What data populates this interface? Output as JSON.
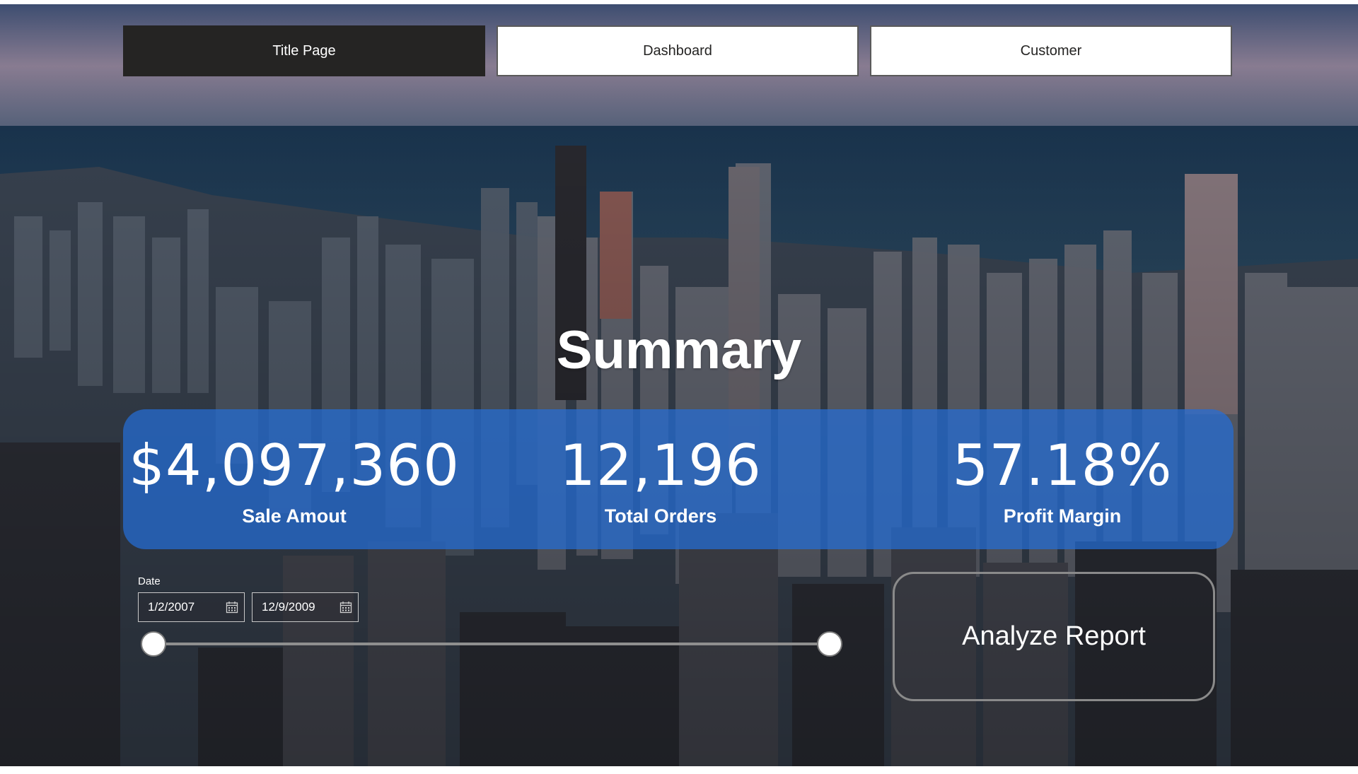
{
  "nav": {
    "title_page_label": "Title Page",
    "dashboard_label": "Dashboard",
    "customer_label": "Customer"
  },
  "summary": {
    "title": "Summary",
    "kpis": [
      {
        "value": "$4,097,360",
        "label": "Sale Amout"
      },
      {
        "value": "12,196",
        "label": "Total Orders"
      },
      {
        "value": "57.18%",
        "label": "Profit Margin"
      }
    ]
  },
  "date_filter": {
    "label": "Date",
    "start_date": "1/2/2007",
    "end_date": "12/9/2009",
    "start_icon": "calendar-icon",
    "end_icon": "calendar-icon"
  },
  "analyze": {
    "label": "Analyze Report"
  },
  "colors": {
    "kpi_panel": "#246ed7",
    "nav_active": "#252423",
    "nav_inactive": "#ffffff"
  }
}
